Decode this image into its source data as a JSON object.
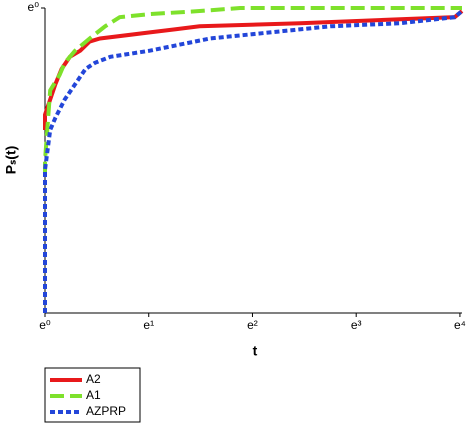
{
  "chart_data": {
    "type": "line",
    "xlabel": "t",
    "ylabel": "Pₛ(t)",
    "xlim": [
      0,
      4.02
    ],
    "ylim": [
      0,
      1
    ],
    "xticks": [
      {
        "value": 0,
        "label": "e⁰"
      },
      {
        "value": 1,
        "label": "e¹"
      },
      {
        "value": 2,
        "label": "e²"
      },
      {
        "value": 3,
        "label": "e³"
      },
      {
        "value": 4,
        "label": "e⁴"
      }
    ],
    "yticks": [
      {
        "value": 1,
        "label": "e⁰"
      }
    ],
    "legend": "bottom-left",
    "series": [
      {
        "name": "A2",
        "color": "#e8191b",
        "dash": "solid",
        "x": [
          0,
          0,
          0.05,
          0.1,
          0.16,
          0.24,
          0.34,
          0.43,
          0.53,
          1.01,
          1.25,
          1.49,
          2.46,
          3.95,
          4.02
        ],
        "values": [
          0.6,
          0.65,
          0.7,
          0.75,
          0.8,
          0.84,
          0.86,
          0.89,
          0.9,
          0.92,
          0.93,
          0.94,
          0.95,
          0.97,
          0.99
        ]
      },
      {
        "name": "A1",
        "color": "#7ee12b",
        "dash": "long",
        "x": [
          0,
          0,
          0.05,
          0.14,
          0.19,
          0.29,
          0.43,
          0.58,
          0.72,
          1.01,
          1.49,
          1.88,
          4.02
        ],
        "values": [
          0.45,
          0.5,
          0.73,
          0.78,
          0.82,
          0.86,
          0.9,
          0.94,
          0.97,
          0.98,
          0.99,
          1.0,
          1.0
        ]
      },
      {
        "name": "AZPRP",
        "color": "#2346d9",
        "dash": "short",
        "x": [
          0,
          0,
          0.05,
          0.1,
          0.19,
          0.29,
          0.39,
          0.48,
          0.63,
          1.01,
          1.3,
          1.59,
          2.17,
          2.75,
          3.42,
          3.95,
          4.02
        ],
        "values": [
          0,
          0.47,
          0.6,
          0.64,
          0.7,
          0.75,
          0.8,
          0.82,
          0.84,
          0.86,
          0.88,
          0.9,
          0.92,
          0.94,
          0.95,
          0.97,
          0.99
        ]
      }
    ]
  }
}
